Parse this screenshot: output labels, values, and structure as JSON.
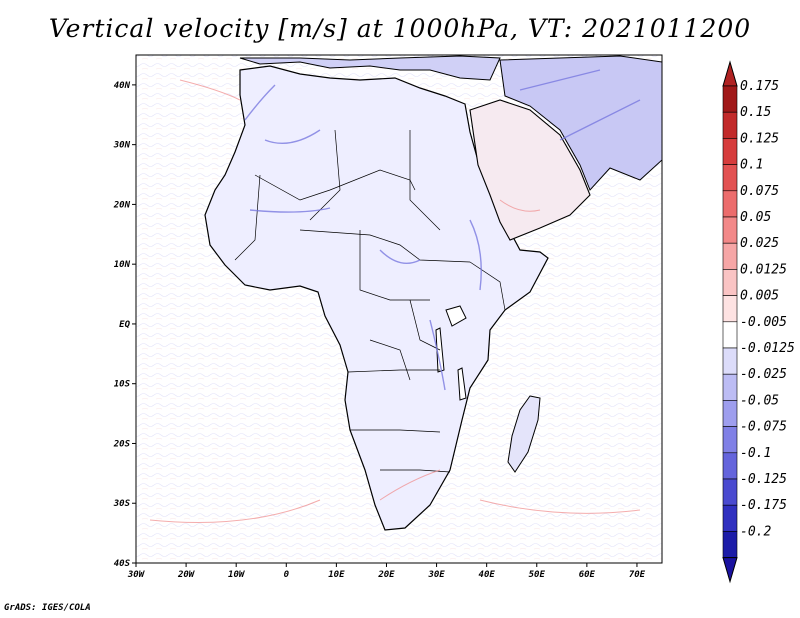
{
  "title": "Vertical velocity [m/s] at 1000hPa, VT: 2021011200",
  "credit": "GrADS: IGES/COLA",
  "map": {
    "region": "Africa",
    "lon_range": [
      -30,
      75
    ],
    "lat_range": [
      -40,
      45
    ],
    "lat_ticks": [
      {
        "value": 40,
        "label": "40N"
      },
      {
        "value": 30,
        "label": "30N"
      },
      {
        "value": 20,
        "label": "20N"
      },
      {
        "value": 10,
        "label": "10N"
      },
      {
        "value": 0,
        "label": "EQ"
      },
      {
        "value": -10,
        "label": "10S"
      },
      {
        "value": -20,
        "label": "20S"
      },
      {
        "value": -30,
        "label": "30S"
      },
      {
        "value": -40,
        "label": "40S"
      }
    ],
    "lon_ticks": [
      {
        "value": -30,
        "label": "30W"
      },
      {
        "value": -20,
        "label": "20W"
      },
      {
        "value": -10,
        "label": "10W"
      },
      {
        "value": 0,
        "label": "0"
      },
      {
        "value": 10,
        "label": "10E"
      },
      {
        "value": 20,
        "label": "20E"
      },
      {
        "value": 30,
        "label": "30E"
      },
      {
        "value": 40,
        "label": "40E"
      },
      {
        "value": 50,
        "label": "50E"
      },
      {
        "value": 60,
        "label": "60E"
      },
      {
        "value": 70,
        "label": "70E"
      }
    ]
  },
  "colorbar": {
    "levels": [
      {
        "label": "0.175",
        "color": "#a01818"
      },
      {
        "label": "0.15",
        "color": "#c22a2a"
      },
      {
        "label": "0.125",
        "color": "#d63c3c"
      },
      {
        "label": "0.1",
        "color": "#e25252"
      },
      {
        "label": "0.075",
        "color": "#ec6c6c"
      },
      {
        "label": "0.05",
        "color": "#f28888"
      },
      {
        "label": "0.025",
        "color": "#f6a6a6"
      },
      {
        "label": "0.0125",
        "color": "#fac4c4"
      },
      {
        "label": "0.005",
        "color": "#fde2e2"
      },
      {
        "label": "-0.005",
        "color": "#ffffff"
      },
      {
        "label": "-0.0125",
        "color": "#dcdcfa"
      },
      {
        "label": "-0.025",
        "color": "#bcbcf4"
      },
      {
        "label": "-0.05",
        "color": "#9e9eee"
      },
      {
        "label": "-0.075",
        "color": "#8080e6"
      },
      {
        "label": "-0.1",
        "color": "#6464dc"
      },
      {
        "label": "-0.125",
        "color": "#4a4ad0"
      },
      {
        "label": "-0.175",
        "color": "#3030c0"
      },
      {
        "label": "-0.2",
        "color": "#1c1ca8"
      }
    ],
    "top_color": "#b02222",
    "bottom_color": "#1a12a0"
  }
}
